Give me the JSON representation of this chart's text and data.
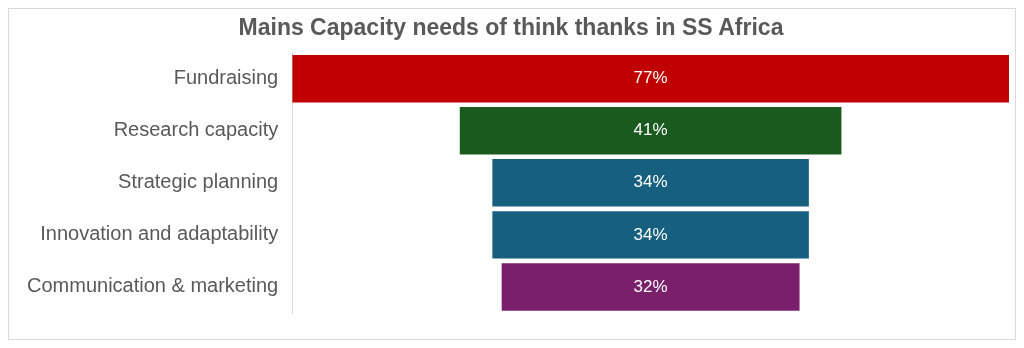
{
  "chart_data": {
    "type": "other",
    "title": "Mains Capacity needs of think thanks in SS Africa",
    "categories": [
      "Fundraising",
      "Research capacity",
      "Strategic planning",
      "Innovation and adaptability",
      "Communication & marketing"
    ],
    "values": [
      77,
      41,
      34,
      34,
      32
    ],
    "colors": [
      "#c00000",
      "#1a5a1f",
      "#175f7f",
      "#175f7f",
      "#7a1f6a"
    ],
    "value_labels": [
      "77%",
      "41%",
      "34%",
      "34%",
      "32%"
    ]
  }
}
